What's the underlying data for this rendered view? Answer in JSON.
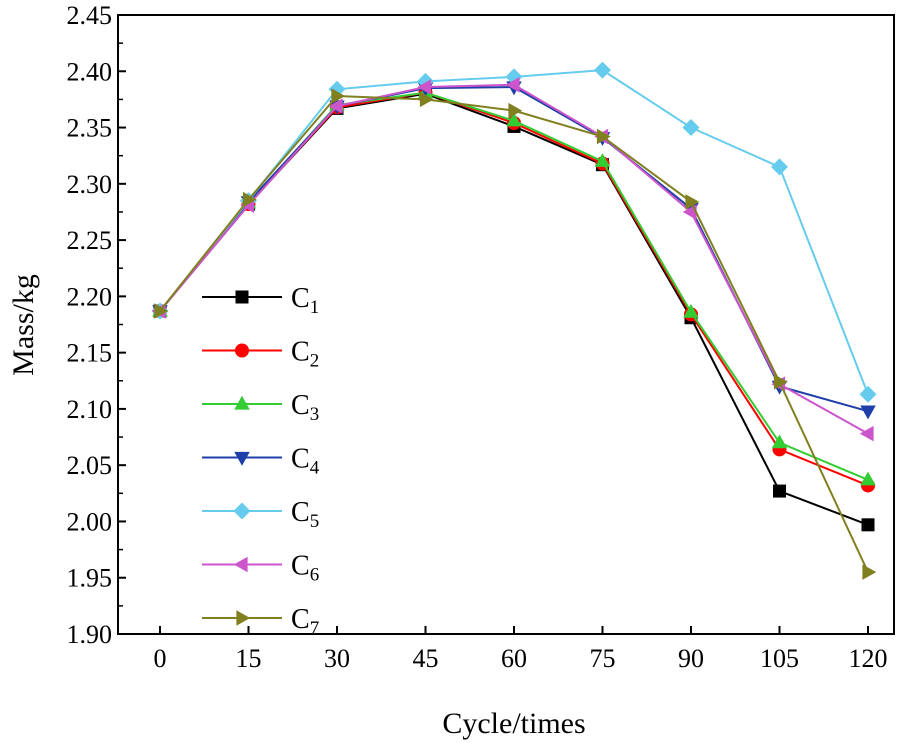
{
  "chart_data": {
    "type": "line",
    "xlabel": "Cycle/times",
    "ylabel": "Mass/kg",
    "x": [
      0,
      15,
      30,
      45,
      60,
      75,
      90,
      105,
      120
    ],
    "x_tick_labels": [
      "0",
      "15",
      "30",
      "45",
      "60",
      "75",
      "90",
      "105",
      "120"
    ],
    "ylim": [
      1.9,
      2.45
    ],
    "y_ticks": [
      1.9,
      1.95,
      2.0,
      2.05,
      2.1,
      2.15,
      2.2,
      2.25,
      2.3,
      2.35,
      2.4,
      2.45
    ],
    "y_tick_labels": [
      "1.90",
      "1.95",
      "2.00",
      "2.05",
      "2.10",
      "2.15",
      "2.20",
      "2.25",
      "2.30",
      "2.35",
      "2.40",
      "2.45"
    ],
    "legend_position": "lower-left",
    "grid": false,
    "series": [
      {
        "name": "C",
        "sub": "1",
        "color": "#000000",
        "marker": "square",
        "values": [
          2.187,
          2.282,
          2.367,
          2.38,
          2.351,
          2.317,
          2.181,
          2.027,
          1.997
        ]
      },
      {
        "name": "C",
        "sub": "2",
        "color": "#ff0000",
        "marker": "circle",
        "values": [
          2.187,
          2.282,
          2.368,
          2.381,
          2.354,
          2.318,
          2.184,
          2.064,
          2.032
        ]
      },
      {
        "name": "C",
        "sub": "3",
        "color": "#33cc33",
        "marker": "triangle-up",
        "values": [
          2.187,
          2.283,
          2.37,
          2.381,
          2.356,
          2.32,
          2.186,
          2.07,
          2.037
        ]
      },
      {
        "name": "C",
        "sub": "4",
        "color": "#1f3fa8",
        "marker": "triangle-down",
        "values": [
          2.187,
          2.284,
          2.369,
          2.385,
          2.386,
          2.341,
          2.278,
          2.12,
          2.098
        ]
      },
      {
        "name": "C",
        "sub": "5",
        "color": "#66ccee",
        "marker": "diamond",
        "values": [
          2.187,
          2.285,
          2.384,
          2.391,
          2.395,
          2.401,
          2.35,
          2.315,
          2.113
        ]
      },
      {
        "name": "C",
        "sub": "6",
        "color": "#cc55cc",
        "marker": "triangle-left",
        "values": [
          2.187,
          2.281,
          2.369,
          2.386,
          2.388,
          2.342,
          2.275,
          2.122,
          2.078
        ]
      },
      {
        "name": "C",
        "sub": "7",
        "color": "#808020",
        "marker": "triangle-right",
        "values": [
          2.187,
          2.286,
          2.378,
          2.375,
          2.365,
          2.342,
          2.284,
          2.124,
          1.955
        ]
      }
    ]
  }
}
